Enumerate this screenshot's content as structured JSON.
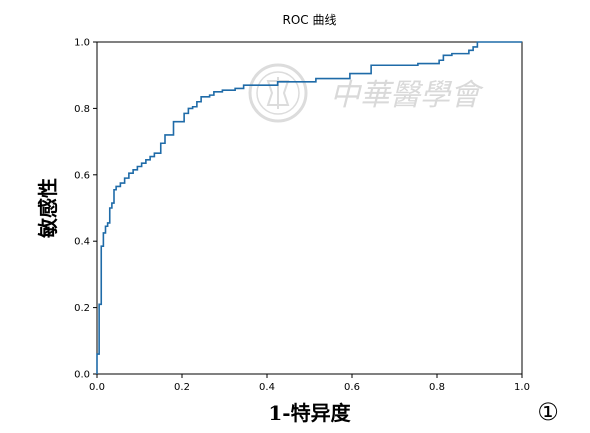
{
  "chart_data": {
    "type": "line",
    "title": "ROC 曲线",
    "xlabel": "1-特异度",
    "ylabel": "敏感性",
    "xlim": [
      0,
      1
    ],
    "ylim": [
      0,
      1
    ],
    "xticks": [
      "0.0",
      "0.2",
      "0.4",
      "0.6",
      "0.8",
      "1.0"
    ],
    "yticks": [
      "0.0",
      "0.2",
      "0.4",
      "0.6",
      "0.8",
      "1.0"
    ],
    "grid": false,
    "series": [
      {
        "color": "#1f6ba8",
        "x": [
          0.0,
          0.0,
          0.005,
          0.005,
          0.01,
          0.01,
          0.015,
          0.015,
          0.02,
          0.02,
          0.025,
          0.025,
          0.03,
          0.03,
          0.035,
          0.035,
          0.04,
          0.04,
          0.045,
          0.045,
          0.055,
          0.055,
          0.065,
          0.065,
          0.075,
          0.075,
          0.085,
          0.085,
          0.095,
          0.095,
          0.105,
          0.105,
          0.115,
          0.115,
          0.125,
          0.125,
          0.135,
          0.135,
          0.15,
          0.15,
          0.16,
          0.16,
          0.17,
          0.17,
          0.18,
          0.18,
          0.205,
          0.205,
          0.215,
          0.215,
          0.225,
          0.225,
          0.235,
          0.235,
          0.245,
          0.245,
          0.265,
          0.265,
          0.275,
          0.275,
          0.295,
          0.295,
          0.325,
          0.325,
          0.345,
          0.345,
          0.425,
          0.425,
          0.515,
          0.515,
          0.595,
          0.595,
          0.645,
          0.645,
          0.755,
          0.755,
          0.805,
          0.805,
          0.815,
          0.815,
          0.835,
          0.835,
          0.875,
          0.875,
          0.885,
          0.885,
          0.895,
          0.895,
          0.905,
          0.905,
          1.0
        ],
        "y": [
          0.0,
          0.06,
          0.06,
          0.21,
          0.21,
          0.385,
          0.385,
          0.425,
          0.425,
          0.445,
          0.445,
          0.455,
          0.455,
          0.5,
          0.5,
          0.515,
          0.515,
          0.555,
          0.555,
          0.565,
          0.565,
          0.575,
          0.575,
          0.59,
          0.59,
          0.605,
          0.605,
          0.615,
          0.615,
          0.625,
          0.625,
          0.635,
          0.635,
          0.645,
          0.645,
          0.655,
          0.655,
          0.665,
          0.665,
          0.695,
          0.695,
          0.72,
          0.72,
          0.72,
          0.72,
          0.76,
          0.76,
          0.785,
          0.785,
          0.8,
          0.8,
          0.805,
          0.805,
          0.82,
          0.82,
          0.835,
          0.835,
          0.84,
          0.84,
          0.85,
          0.85,
          0.855,
          0.855,
          0.86,
          0.86,
          0.87,
          0.87,
          0.88,
          0.88,
          0.89,
          0.89,
          0.905,
          0.905,
          0.93,
          0.93,
          0.935,
          0.935,
          0.945,
          0.945,
          0.96,
          0.96,
          0.965,
          0.965,
          0.975,
          0.975,
          0.985,
          0.985,
          1.0,
          1.0,
          1.0,
          1.0
        ]
      }
    ]
  },
  "panel_label": "①",
  "watermark": {
    "icon": "seal-emblem-icon",
    "text": "中華醫學會",
    "color": "#d9d9d9"
  }
}
